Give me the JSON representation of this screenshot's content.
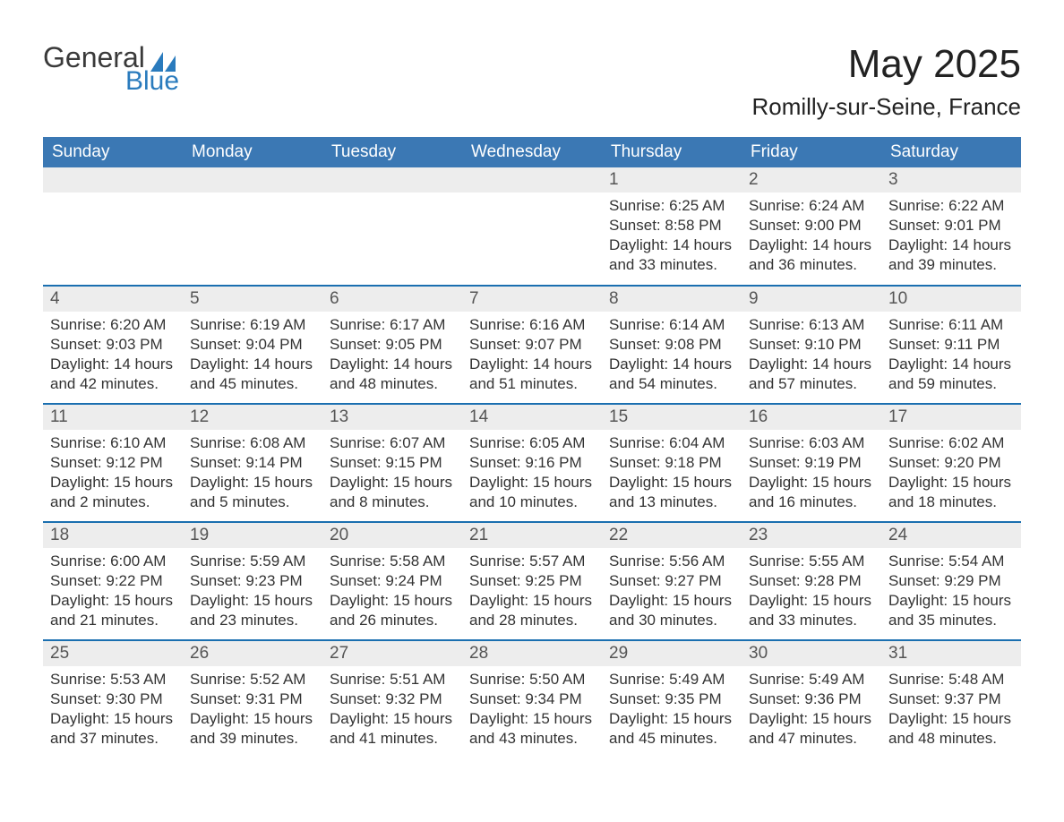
{
  "brand": {
    "line1": "General",
    "line2": "Blue"
  },
  "title": "May 2025",
  "location": "Romilly-sur-Seine, France",
  "style": {
    "header_bg": "#3b78b4",
    "header_fg": "#ffffff",
    "accent_line": "#1a6fb0",
    "daynum_bg": "#ededed",
    "text": "#333333",
    "logo_dark": "#3a3a3a",
    "logo_blue": "#2a7bbd",
    "page_bg": "#ffffff",
    "month_title_fontsize_pt": 33,
    "location_fontsize_pt": 20,
    "weekday_header_fontsize_pt": 14,
    "body_fontsize_pt": 13,
    "columns": 7,
    "type": "calendar-table"
  },
  "weekdays": [
    "Sunday",
    "Monday",
    "Tuesday",
    "Wednesday",
    "Thursday",
    "Friday",
    "Saturday"
  ],
  "labels": {
    "sunrise": "Sunrise: ",
    "sunset": "Sunset: ",
    "daylight": "Daylight: "
  },
  "weeks": [
    [
      null,
      null,
      null,
      null,
      {
        "n": "1",
        "sunrise": "6:25 AM",
        "sunset": "8:58 PM",
        "daylight": "14 hours and 33 minutes."
      },
      {
        "n": "2",
        "sunrise": "6:24 AM",
        "sunset": "9:00 PM",
        "daylight": "14 hours and 36 minutes."
      },
      {
        "n": "3",
        "sunrise": "6:22 AM",
        "sunset": "9:01 PM",
        "daylight": "14 hours and 39 minutes."
      }
    ],
    [
      {
        "n": "4",
        "sunrise": "6:20 AM",
        "sunset": "9:03 PM",
        "daylight": "14 hours and 42 minutes."
      },
      {
        "n": "5",
        "sunrise": "6:19 AM",
        "sunset": "9:04 PM",
        "daylight": "14 hours and 45 minutes."
      },
      {
        "n": "6",
        "sunrise": "6:17 AM",
        "sunset": "9:05 PM",
        "daylight": "14 hours and 48 minutes."
      },
      {
        "n": "7",
        "sunrise": "6:16 AM",
        "sunset": "9:07 PM",
        "daylight": "14 hours and 51 minutes."
      },
      {
        "n": "8",
        "sunrise": "6:14 AM",
        "sunset": "9:08 PM",
        "daylight": "14 hours and 54 minutes."
      },
      {
        "n": "9",
        "sunrise": "6:13 AM",
        "sunset": "9:10 PM",
        "daylight": "14 hours and 57 minutes."
      },
      {
        "n": "10",
        "sunrise": "6:11 AM",
        "sunset": "9:11 PM",
        "daylight": "14 hours and 59 minutes."
      }
    ],
    [
      {
        "n": "11",
        "sunrise": "6:10 AM",
        "sunset": "9:12 PM",
        "daylight": "15 hours and 2 minutes."
      },
      {
        "n": "12",
        "sunrise": "6:08 AM",
        "sunset": "9:14 PM",
        "daylight": "15 hours and 5 minutes."
      },
      {
        "n": "13",
        "sunrise": "6:07 AM",
        "sunset": "9:15 PM",
        "daylight": "15 hours and 8 minutes."
      },
      {
        "n": "14",
        "sunrise": "6:05 AM",
        "sunset": "9:16 PM",
        "daylight": "15 hours and 10 minutes."
      },
      {
        "n": "15",
        "sunrise": "6:04 AM",
        "sunset": "9:18 PM",
        "daylight": "15 hours and 13 minutes."
      },
      {
        "n": "16",
        "sunrise": "6:03 AM",
        "sunset": "9:19 PM",
        "daylight": "15 hours and 16 minutes."
      },
      {
        "n": "17",
        "sunrise": "6:02 AM",
        "sunset": "9:20 PM",
        "daylight": "15 hours and 18 minutes."
      }
    ],
    [
      {
        "n": "18",
        "sunrise": "6:00 AM",
        "sunset": "9:22 PM",
        "daylight": "15 hours and 21 minutes."
      },
      {
        "n": "19",
        "sunrise": "5:59 AM",
        "sunset": "9:23 PM",
        "daylight": "15 hours and 23 minutes."
      },
      {
        "n": "20",
        "sunrise": "5:58 AM",
        "sunset": "9:24 PM",
        "daylight": "15 hours and 26 minutes."
      },
      {
        "n": "21",
        "sunrise": "5:57 AM",
        "sunset": "9:25 PM",
        "daylight": "15 hours and 28 minutes."
      },
      {
        "n": "22",
        "sunrise": "5:56 AM",
        "sunset": "9:27 PM",
        "daylight": "15 hours and 30 minutes."
      },
      {
        "n": "23",
        "sunrise": "5:55 AM",
        "sunset": "9:28 PM",
        "daylight": "15 hours and 33 minutes."
      },
      {
        "n": "24",
        "sunrise": "5:54 AM",
        "sunset": "9:29 PM",
        "daylight": "15 hours and 35 minutes."
      }
    ],
    [
      {
        "n": "25",
        "sunrise": "5:53 AM",
        "sunset": "9:30 PM",
        "daylight": "15 hours and 37 minutes."
      },
      {
        "n": "26",
        "sunrise": "5:52 AM",
        "sunset": "9:31 PM",
        "daylight": "15 hours and 39 minutes."
      },
      {
        "n": "27",
        "sunrise": "5:51 AM",
        "sunset": "9:32 PM",
        "daylight": "15 hours and 41 minutes."
      },
      {
        "n": "28",
        "sunrise": "5:50 AM",
        "sunset": "9:34 PM",
        "daylight": "15 hours and 43 minutes."
      },
      {
        "n": "29",
        "sunrise": "5:49 AM",
        "sunset": "9:35 PM",
        "daylight": "15 hours and 45 minutes."
      },
      {
        "n": "30",
        "sunrise": "5:49 AM",
        "sunset": "9:36 PM",
        "daylight": "15 hours and 47 minutes."
      },
      {
        "n": "31",
        "sunrise": "5:48 AM",
        "sunset": "9:37 PM",
        "daylight": "15 hours and 48 minutes."
      }
    ]
  ]
}
